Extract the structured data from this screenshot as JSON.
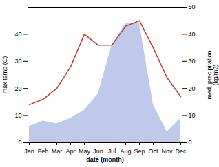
{
  "chart_data": {
    "type": "line",
    "categories": [
      "Jan",
      "Feb",
      "Mar",
      "Apr",
      "May",
      "Jun",
      "Jul",
      "Aug",
      "Sep",
      "Oct",
      "Nov",
      "Dec"
    ],
    "series": [
      {
        "type": "area",
        "color": "#b8c4e8",
        "values": [
          6,
          8,
          7,
          9,
          12,
          18,
          36,
          44,
          44,
          14,
          4,
          9
        ]
      },
      {
        "type": "line",
        "color": "#c0392b",
        "values": [
          14,
          16,
          20,
          28,
          40,
          36,
          36,
          43,
          45,
          35,
          24,
          17
        ]
      }
    ],
    "xlabel": "date (month)",
    "ylabel": "max temp (C)",
    "y2label": "med. precipitation\n(kg/m2)",
    "ylim": [
      0,
      50
    ],
    "yticks": [
      0,
      10,
      20,
      30,
      40
    ],
    "y2lim": [
      0,
      50
    ],
    "y2ticks": [
      0,
      10,
      20,
      30,
      40,
      50
    ]
  }
}
